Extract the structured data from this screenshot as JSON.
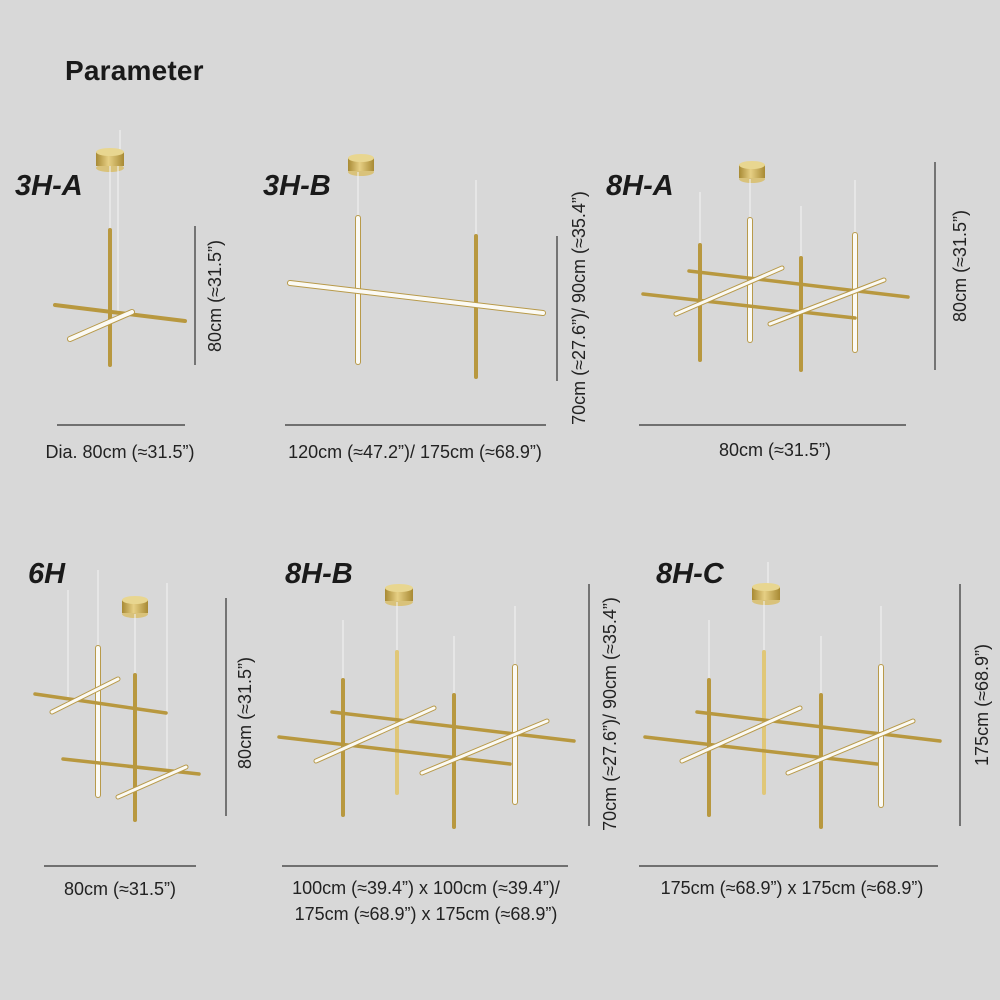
{
  "page": {
    "title": "Parameter"
  },
  "models": [
    {
      "id": "3H-A",
      "label": "3H-A",
      "width_label": "Dia. 80cm (≈31.5”)",
      "height_label": "80cm (≈31.5”)"
    },
    {
      "id": "3H-B",
      "label": "3H-B",
      "width_label": "120cm (≈47.2”)/ 175cm (≈68.9”)",
      "height_label": "70cm (≈27.6”)/ 90cm (≈35.4”)"
    },
    {
      "id": "8H-A",
      "label": "8H-A",
      "width_label": "80cm (≈31.5”)",
      "height_label": "80cm (≈31.5”)"
    },
    {
      "id": "6H",
      "label": "6H",
      "width_label": "80cm (≈31.5”)",
      "height_label": "80cm (≈31.5”)"
    },
    {
      "id": "8H-B",
      "label": "8H-B",
      "width_label_line1": "100cm (≈39.4”) x 100cm (≈39.4”)/",
      "width_label_line2": "175cm (≈68.9”) x 175cm (≈68.9”)",
      "height_label": "70cm (≈27.6”)/ 90cm (≈35.4”)"
    },
    {
      "id": "8H-C",
      "label": "8H-C",
      "width_label": "175cm (≈68.9”) x 175cm (≈68.9”)",
      "height_label": "175cm (≈68.9”)"
    }
  ],
  "colors": {
    "background": "#d8d8d8",
    "gold": "#b8983f",
    "led": "#fbfaf4",
    "text": "#222222"
  }
}
